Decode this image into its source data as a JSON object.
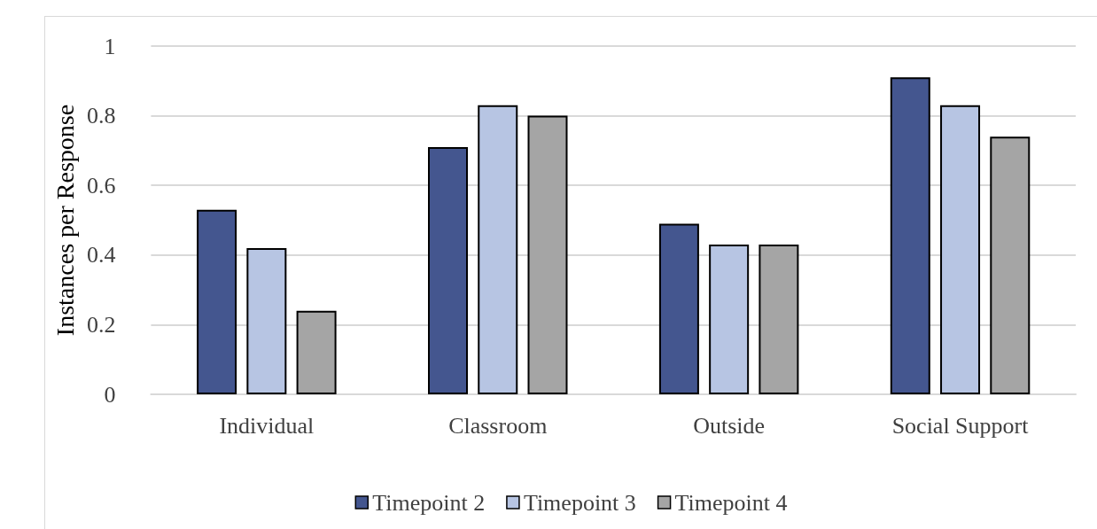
{
  "chart_data": {
    "type": "bar",
    "ylabel": "Instances per Response",
    "categories": [
      "Individual",
      "Classroom",
      "Outside",
      "Social Support"
    ],
    "series": [
      {
        "name": "Timepoint 2",
        "color": "#44568f",
        "values": [
          0.53,
          0.71,
          0.49,
          0.91
        ]
      },
      {
        "name": "Timepoint 3",
        "color": "#b7c5e3",
        "values": [
          0.42,
          0.83,
          0.43,
          0.83
        ]
      },
      {
        "name": "Timepoint 4",
        "color": "#a5a5a5",
        "values": [
          0.24,
          0.8,
          0.43,
          0.74
        ]
      }
    ],
    "ylim": [
      0,
      1
    ],
    "yticks": [
      0,
      0.2,
      0.4,
      0.6,
      0.8,
      1
    ],
    "grid": "y",
    "legend": "bottom"
  }
}
